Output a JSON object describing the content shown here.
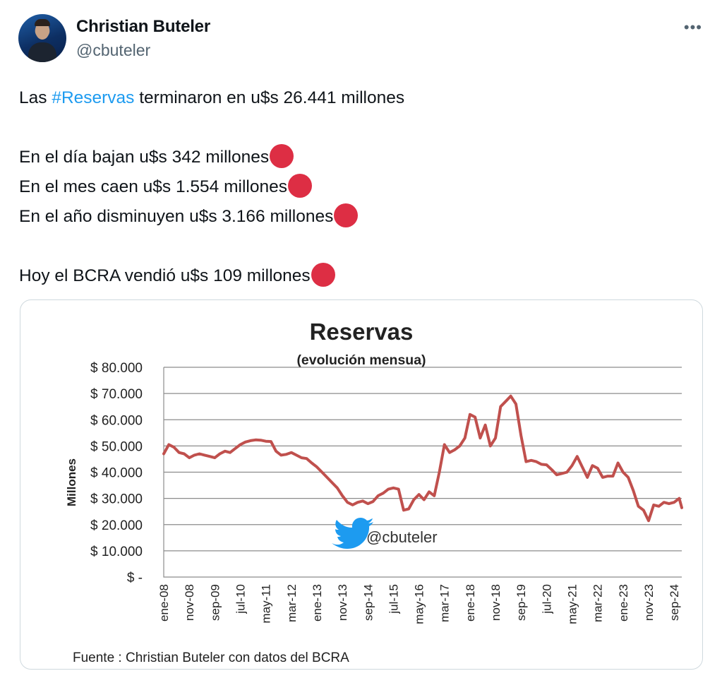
{
  "author": {
    "name": "Christian Buteler",
    "handle": "@cbuteler"
  },
  "more_icon": "more-icon",
  "tweet": {
    "line1_prefix": "Las ",
    "line1_hashtag": "#Reservas",
    "line1_suffix": " terminaron en u$s 26.441 millones",
    "line2": "En el día bajan u$s 342 millones",
    "line3": "En el mes caen u$s 1.554 millones",
    "line4": "En el año disminuyen u$s 3.166 millones",
    "line5": "Hoy el BCRA vendió u$s 109 millones",
    "emoji": "red-circle-icon"
  },
  "chart_data": {
    "type": "line",
    "title": "Reservas",
    "subtitle": "(evolución mensua)",
    "xlabel": "",
    "ylabel": "Millones",
    "ylim": [
      0,
      80000
    ],
    "y_ticks": [
      "$ 80.000",
      "$ 70.000",
      "$ 60.000",
      "$ 50.000",
      "$ 40.000",
      "$ 30.000",
      "$ 20.000",
      "$ 10.000",
      "$ -"
    ],
    "grid": true,
    "watermark": "@cbuteler",
    "source": "Fuente : Christian Buteler con datos del BCRA",
    "line_color": "#c0504d",
    "x_ticks": [
      "ene-08",
      "nov-08",
      "sep-09",
      "jul-10",
      "may-11",
      "mar-12",
      "ene-13",
      "nov-13",
      "sep-14",
      "jul-15",
      "may-16",
      "mar-17",
      "ene-18",
      "nov-18",
      "sep-19",
      "jul-20",
      "may-21",
      "mar-22",
      "ene-23",
      "nov-23",
      "sep-24"
    ],
    "series": [
      {
        "x": [
          "ene-08",
          "mar-08",
          "may-08",
          "jul-08",
          "sep-08",
          "nov-08",
          "ene-09",
          "mar-09",
          "may-09",
          "jul-09",
          "sep-09",
          "nov-09",
          "ene-10",
          "mar-10",
          "may-10",
          "jul-10",
          "sep-10",
          "nov-10",
          "ene-11",
          "mar-11",
          "may-11",
          "jul-11",
          "sep-11",
          "nov-11",
          "ene-12",
          "mar-12",
          "may-12",
          "jul-12",
          "sep-12",
          "nov-12",
          "ene-13",
          "mar-13",
          "may-13",
          "jul-13",
          "sep-13",
          "nov-13",
          "ene-14",
          "mar-14",
          "may-14",
          "jul-14",
          "sep-14",
          "nov-14",
          "ene-15",
          "mar-15",
          "may-15",
          "jul-15",
          "sep-15",
          "nov-15",
          "ene-16",
          "mar-16",
          "may-16",
          "jul-16",
          "sep-16",
          "nov-16",
          "ene-17",
          "mar-17",
          "may-17",
          "jul-17",
          "sep-17",
          "nov-17",
          "ene-18",
          "mar-18",
          "may-18",
          "jul-18",
          "sep-18",
          "nov-18",
          "ene-19",
          "mar-19",
          "may-19",
          "jul-19",
          "sep-19",
          "nov-19",
          "ene-20",
          "mar-20",
          "may-20",
          "jul-20",
          "sep-20",
          "nov-20",
          "ene-21",
          "mar-21",
          "may-21",
          "jul-21",
          "sep-21",
          "nov-21",
          "ene-22",
          "mar-22",
          "may-22",
          "jul-22",
          "sep-22",
          "nov-22",
          "ene-23",
          "mar-23",
          "may-23",
          "jul-23",
          "sep-23",
          "nov-23",
          "ene-24",
          "mar-24",
          "may-24",
          "jul-24",
          "sep-24",
          "nov-24",
          "dic-24"
        ],
        "y": [
          47000,
          50500,
          49500,
          47500,
          47000,
          45500,
          46500,
          47000,
          46500,
          46000,
          45500,
          47000,
          48000,
          47500,
          49000,
          50500,
          51500,
          52000,
          52300,
          52200,
          51800,
          51700,
          48000,
          46500,
          46800,
          47500,
          46500,
          45500,
          45200,
          43500,
          42000,
          40000,
          38000,
          36000,
          34000,
          31000,
          28500,
          27500,
          28500,
          29000,
          28000,
          28800,
          31000,
          32000,
          33500,
          34000,
          33500,
          25500,
          26000,
          29500,
          31500,
          29500,
          32500,
          31000,
          40000,
          50500,
          47500,
          48500,
          50000,
          53000,
          62000,
          61000,
          53000,
          58000,
          50000,
          53000,
          65000,
          67000,
          69000,
          66000,
          54000,
          44000,
          44500,
          44000,
          43000,
          42800,
          41000,
          39000,
          39500,
          40000,
          42500,
          46000,
          42000,
          38000,
          42500,
          41500,
          38000,
          38500,
          38500,
          43500,
          40000,
          38000,
          33000,
          27000,
          25500,
          21500,
          27500,
          27000,
          28500,
          28000,
          28500,
          30000,
          26441
        ]
      }
    ]
  }
}
